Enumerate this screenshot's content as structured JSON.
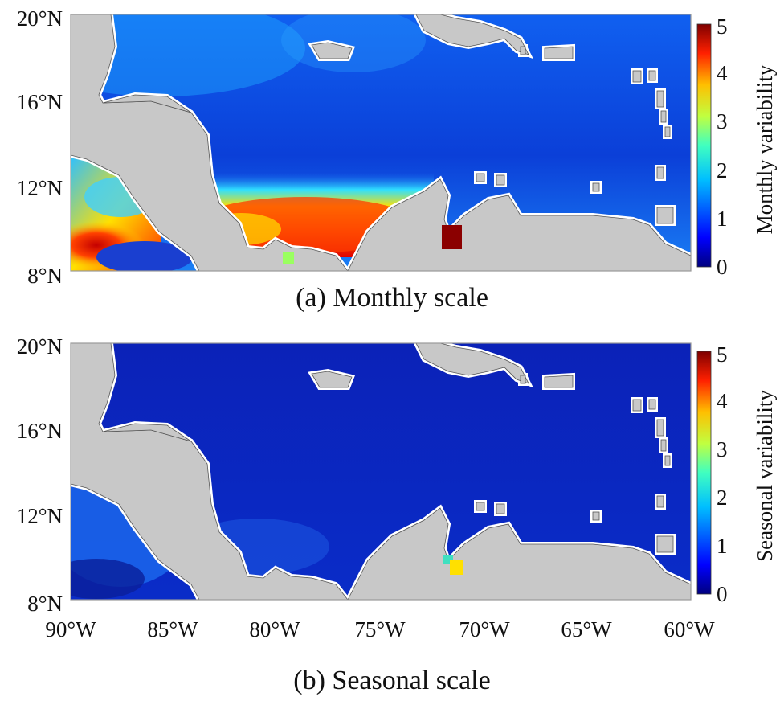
{
  "panels": [
    {
      "id": "a",
      "caption": "(a) Monthly scale",
      "colorbar_label": "Monthly variability",
      "colorbar_ticks": [
        "0",
        "1",
        "2",
        "3",
        "4",
        "5"
      ],
      "lat_ticks": [
        "20°N",
        "16°N",
        "12°N",
        "8°N"
      ],
      "lon_ticks": []
    },
    {
      "id": "b",
      "caption": "(b) Seasonal scale",
      "colorbar_label": "Seasonal variability",
      "colorbar_ticks": [
        "0",
        "1",
        "2",
        "3",
        "4",
        "5"
      ],
      "lat_ticks": [
        "20°N",
        "16°N",
        "12°N",
        "8°N"
      ],
      "lon_ticks": [
        "90°W",
        "85°W",
        "80°W",
        "75°W",
        "70°W",
        "65°W",
        "60°W"
      ]
    }
  ],
  "map_extent": {
    "lon": [
      -90,
      -60
    ],
    "lat": [
      8,
      20
    ]
  },
  "colormap": "jet",
  "colorbar_range": [
    0,
    5
  ],
  "colors": {
    "land": "#c8c8c8",
    "ocean_low": "#0a1fa8",
    "ocean_mid": "#1a6cf0",
    "high": "#e01010"
  }
}
